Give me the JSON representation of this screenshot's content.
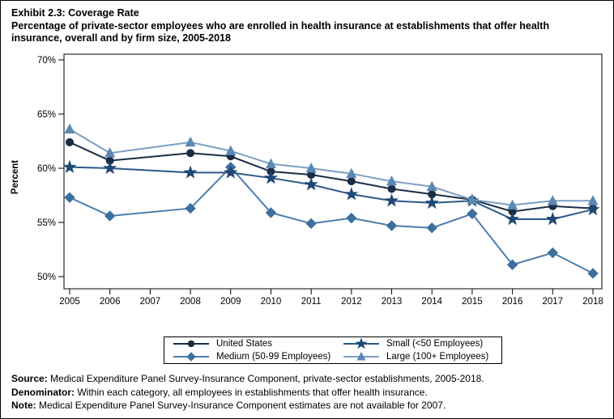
{
  "header": {
    "title": "Exhibit 2.3: Coverage Rate",
    "subtitle_line1": "Percentage of private-sector employees who are enrolled in health insurance at establishments that offer health",
    "subtitle_line2": "insurance, overall and by firm size, 2005-2018"
  },
  "chart_data": {
    "type": "line",
    "title": "Exhibit 2.3: Coverage Rate",
    "xlabel": "",
    "ylabel": "Percent",
    "ylim": [
      50,
      70
    ],
    "yticks": [
      50,
      55,
      60,
      65,
      70
    ],
    "ytick_suffix": "%",
    "grid": false,
    "legend_position": "bottom",
    "missing_data_note": "estimates not available for 2007",
    "categories": [
      "2005",
      "2006",
      "2007",
      "2008",
      "2009",
      "2010",
      "2011",
      "2012",
      "2013",
      "2014",
      "2015",
      "2016",
      "2017",
      "2018"
    ],
    "series": [
      {
        "name": "United States",
        "marker": "circle",
        "color": "#1b2d45",
        "line_color": "#1b2d45",
        "values": [
          62.4,
          60.7,
          null,
          61.4,
          61.1,
          59.7,
          59.4,
          58.8,
          58.1,
          57.6,
          57.1,
          56.0,
          56.5,
          56.3
        ]
      },
      {
        "name": "Small (<50 Employees)",
        "marker": "star",
        "color": "#1f4873",
        "line_color": "#2a5988",
        "values": [
          60.1,
          60.0,
          null,
          59.6,
          59.6,
          59.1,
          58.5,
          57.6,
          57.0,
          56.8,
          57.0,
          55.3,
          55.3,
          56.2
        ]
      },
      {
        "name": "Medium (50-99 Employees)",
        "marker": "diamond",
        "color": "#3d6f9e",
        "line_color": "#4d7dab",
        "values": [
          57.3,
          55.6,
          null,
          56.3,
          60.1,
          55.9,
          54.9,
          55.4,
          54.7,
          54.5,
          55.8,
          51.1,
          52.2,
          50.3
        ]
      },
      {
        "name": "Large (100+ Employees)",
        "marker": "triangle",
        "color": "#5c88b4",
        "line_color": "#7d9fc6",
        "values": [
          63.6,
          61.4,
          null,
          62.4,
          61.6,
          60.4,
          60.0,
          59.5,
          58.8,
          58.3,
          57.1,
          56.6,
          57.0,
          57.0
        ]
      }
    ]
  },
  "footnotes": [
    {
      "label": "Source:",
      "text": " Medical Expenditure Panel Survey-Insurance Component, private-sector establishments, 2005-2018."
    },
    {
      "label": "Denominator:",
      "text": " Within each category, all employees in establishments that offer health insurance."
    },
    {
      "label": "Note:",
      "text": " Medical Expenditure Panel Survey-Insurance Component estimates are not available for 2007."
    }
  ]
}
